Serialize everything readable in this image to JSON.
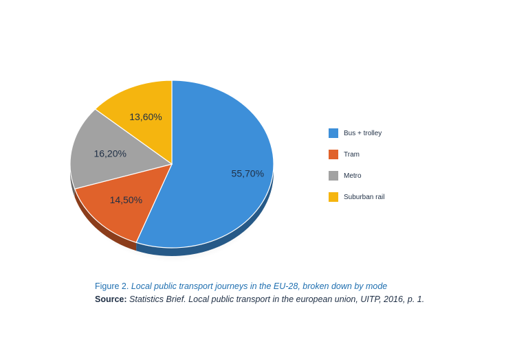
{
  "chart_data": {
    "type": "pie",
    "categories": [
      "Bus + trolley",
      "Tram",
      "Metro",
      "Suburban rail"
    ],
    "values": [
      55.7,
      14.5,
      16.2,
      13.6
    ],
    "value_labels": [
      "55,70%",
      "14,50%",
      "16,20%",
      "13,60%"
    ],
    "colors": [
      "#3d8fd9",
      "#e0622b",
      "#a2a2a2",
      "#f5b50f"
    ],
    "legend_position": "right",
    "start_angle_deg": -90,
    "direction": "clockwise",
    "style": "3d-tilted"
  },
  "legend": {
    "items": [
      {
        "label": "Bus + trolley",
        "color": "#3d8fd9"
      },
      {
        "label": "Tram",
        "color": "#e0622b"
      },
      {
        "label": "Metro",
        "color": "#a2a2a2"
      },
      {
        "label": "Suburban rail",
        "color": "#f5b50f"
      }
    ]
  },
  "caption": {
    "figure_lead": "Figure 2.",
    "figure_text": "Local public transport journeys in the EU-28, broken down by mode",
    "source_lead": "Source:",
    "source_text": "Statistics Brief. Local public transport in the european union, UITP, 2016, p. 1."
  }
}
